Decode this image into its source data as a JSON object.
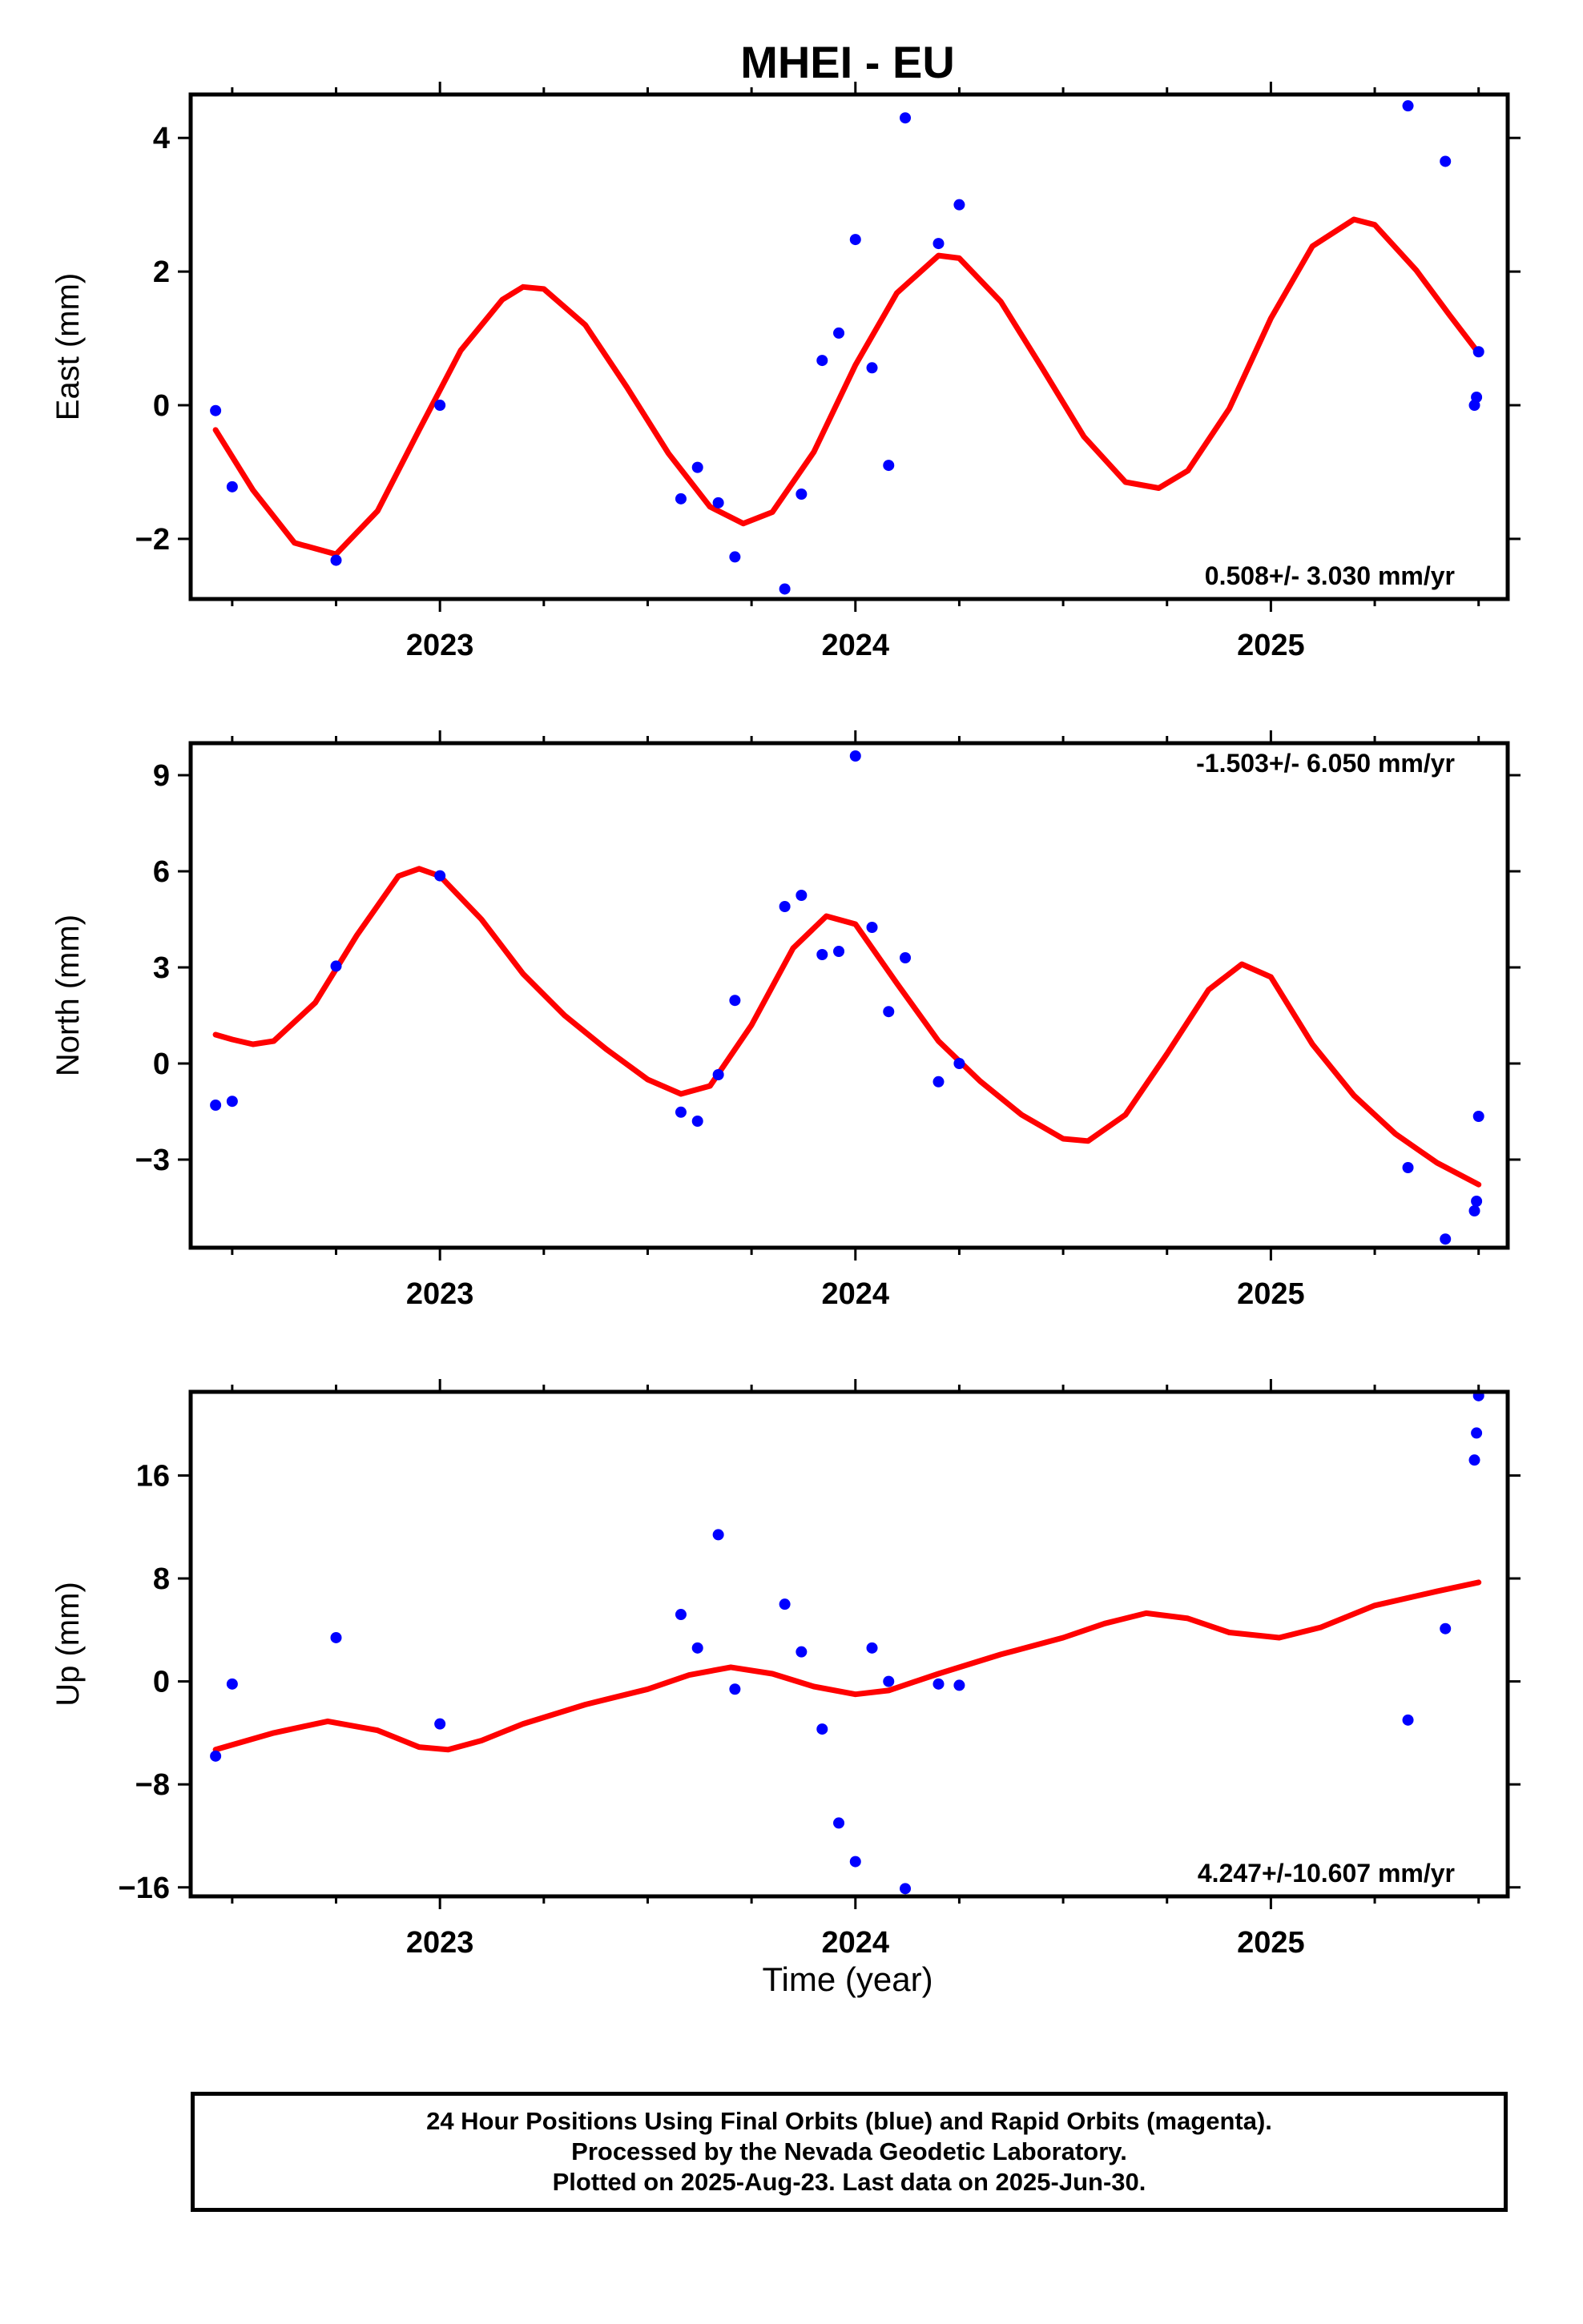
{
  "title": "MHEI - EU",
  "colors": {
    "final_orbits": "#0000ff",
    "fit_curve": "#ff0000",
    "frame": "#000000"
  },
  "footer": {
    "line1": "24 Hour Positions Using Final Orbits (blue) and Rapid Orbits (magenta).",
    "line2": "Processed by the Nevada Geodetic Laboratory.",
    "line3": "Plotted on 2025-Aug-23. Last data on 2025-Jun-30."
  },
  "chart_data": [
    {
      "type": "scatter",
      "ylabel": "East (mm)",
      "xlabel": "",
      "rate_label": "0.508+/- 3.030 mm/yr",
      "xlim": [
        2022.4,
        2025.57
      ],
      "ylim": [
        -2.9,
        4.65
      ],
      "x_ticks": [
        2023,
        2024,
        2025
      ],
      "y_ticks": [
        -2,
        0,
        2,
        4
      ],
      "series": [
        {
          "points": [
            [
              2022.46,
              -0.08
            ],
            [
              2022.5,
              -1.22
            ],
            [
              2022.75,
              -2.32
            ],
            [
              2023.0,
              0.0
            ],
            [
              2023.58,
              -1.4
            ],
            [
              2023.62,
              -0.93
            ],
            [
              2023.67,
              -1.46
            ],
            [
              2023.71,
              -2.27
            ],
            [
              2023.83,
              -2.75
            ],
            [
              2023.87,
              -1.33
            ],
            [
              2023.92,
              0.67
            ],
            [
              2023.96,
              1.08
            ],
            [
              2024.0,
              2.48
            ],
            [
              2024.04,
              0.56
            ],
            [
              2024.08,
              -0.9
            ],
            [
              2024.12,
              4.3
            ],
            [
              2024.2,
              2.42
            ],
            [
              2024.25,
              3.0
            ],
            [
              2025.33,
              4.48
            ],
            [
              2025.42,
              3.65
            ],
            [
              2025.49,
              0.0
            ],
            [
              2025.495,
              0.12
            ],
            [
              2025.5,
              0.8
            ]
          ]
        },
        {
          "curve": [
            [
              2022.46,
              -0.37
            ],
            [
              2022.55,
              -1.27
            ],
            [
              2022.65,
              -2.06
            ],
            [
              2022.75,
              -2.23
            ],
            [
              2022.85,
              -1.58
            ],
            [
              2022.95,
              -0.37
            ],
            [
              2023.05,
              0.82
            ],
            [
              2023.15,
              1.58
            ],
            [
              2023.2,
              1.77
            ],
            [
              2023.25,
              1.74
            ],
            [
              2023.35,
              1.2
            ],
            [
              2023.45,
              0.27
            ],
            [
              2023.55,
              -0.72
            ],
            [
              2023.65,
              -1.52
            ],
            [
              2023.73,
              -1.77
            ],
            [
              2023.8,
              -1.6
            ],
            [
              2023.9,
              -0.7
            ],
            [
              2024.0,
              0.6
            ],
            [
              2024.1,
              1.68
            ],
            [
              2024.2,
              2.24
            ],
            [
              2024.25,
              2.2
            ],
            [
              2024.35,
              1.55
            ],
            [
              2024.45,
              0.55
            ],
            [
              2024.55,
              -0.47
            ],
            [
              2024.65,
              -1.15
            ],
            [
              2024.73,
              -1.24
            ],
            [
              2024.8,
              -0.98
            ],
            [
              2024.9,
              -0.05
            ],
            [
              2025.0,
              1.3
            ],
            [
              2025.1,
              2.38
            ],
            [
              2025.2,
              2.78
            ],
            [
              2025.25,
              2.7
            ],
            [
              2025.35,
              2.02
            ],
            [
              2025.43,
              1.35
            ],
            [
              2025.5,
              0.78
            ]
          ]
        }
      ]
    },
    {
      "type": "scatter",
      "ylabel": "North (mm)",
      "xlabel": "",
      "rate_label": "-1.503+/- 6.050 mm/yr",
      "xlim": [
        2022.4,
        2025.57
      ],
      "ylim": [
        -5.75,
        10.0
      ],
      "x_ticks": [
        2023,
        2024,
        2025
      ],
      "y_ticks": [
        -3,
        0,
        3,
        6,
        9
      ],
      "series": [
        {
          "points": [
            [
              2022.46,
              -1.3
            ],
            [
              2022.5,
              -1.18
            ],
            [
              2022.75,
              3.04
            ],
            [
              2023.0,
              5.86
            ],
            [
              2023.58,
              -1.52
            ],
            [
              2023.62,
              -1.8
            ],
            [
              2023.67,
              -0.35
            ],
            [
              2023.71,
              1.97
            ],
            [
              2023.83,
              4.9
            ],
            [
              2023.87,
              5.25
            ],
            [
              2023.92,
              3.4
            ],
            [
              2023.96,
              3.5
            ],
            [
              2024.0,
              9.6
            ],
            [
              2024.04,
              4.25
            ],
            [
              2024.08,
              1.62
            ],
            [
              2024.12,
              3.3
            ],
            [
              2024.2,
              -0.57
            ],
            [
              2024.25,
              0.0
            ],
            [
              2025.33,
              -3.25
            ],
            [
              2025.42,
              -5.48
            ],
            [
              2025.49,
              -4.6
            ],
            [
              2025.495,
              -4.3
            ],
            [
              2025.5,
              -1.65
            ]
          ]
        },
        {
          "curve": [
            [
              2022.46,
              0.9
            ],
            [
              2022.5,
              0.75
            ],
            [
              2022.55,
              0.6
            ],
            [
              2022.6,
              0.7
            ],
            [
              2022.7,
              1.9
            ],
            [
              2022.8,
              4.0
            ],
            [
              2022.9,
              5.85
            ],
            [
              2022.95,
              6.08
            ],
            [
              2023.0,
              5.85
            ],
            [
              2023.1,
              4.5
            ],
            [
              2023.2,
              2.8
            ],
            [
              2023.3,
              1.5
            ],
            [
              2023.4,
              0.45
            ],
            [
              2023.5,
              -0.5
            ],
            [
              2023.58,
              -0.95
            ],
            [
              2023.65,
              -0.7
            ],
            [
              2023.75,
              1.2
            ],
            [
              2023.85,
              3.6
            ],
            [
              2023.93,
              4.6
            ],
            [
              2024.0,
              4.35
            ],
            [
              2024.1,
              2.5
            ],
            [
              2024.2,
              0.7
            ],
            [
              2024.3,
              -0.55
            ],
            [
              2024.4,
              -1.6
            ],
            [
              2024.5,
              -2.35
            ],
            [
              2024.56,
              -2.42
            ],
            [
              2024.65,
              -1.6
            ],
            [
              2024.75,
              0.3
            ],
            [
              2024.85,
              2.3
            ],
            [
              2024.93,
              3.1
            ],
            [
              2025.0,
              2.7
            ],
            [
              2025.1,
              0.6
            ],
            [
              2025.2,
              -1.0
            ],
            [
              2025.3,
              -2.2
            ],
            [
              2025.4,
              -3.1
            ],
            [
              2025.5,
              -3.78
            ]
          ]
        }
      ]
    },
    {
      "type": "scatter",
      "ylabel": "Up (mm)",
      "xlabel": "Time (year)",
      "rate_label": "4.247+/-10.607 mm/yr",
      "xlim": [
        2022.4,
        2025.57
      ],
      "ylim": [
        -16.7,
        22.5
      ],
      "x_ticks": [
        2023,
        2024,
        2025
      ],
      "y_ticks": [
        -16,
        -8,
        0,
        8,
        16
      ],
      "series": [
        {
          "points": [
            [
              2022.46,
              -5.8
            ],
            [
              2022.5,
              -0.2
            ],
            [
              2022.75,
              3.4
            ],
            [
              2023.0,
              -3.3
            ],
            [
              2023.58,
              5.2
            ],
            [
              2023.62,
              2.6
            ],
            [
              2023.67,
              11.4
            ],
            [
              2023.71,
              -0.6
            ],
            [
              2023.83,
              6.0
            ],
            [
              2023.87,
              2.3
            ],
            [
              2023.92,
              -3.7
            ],
            [
              2023.96,
              -11.0
            ],
            [
              2024.0,
              -14.0
            ],
            [
              2024.04,
              2.6
            ],
            [
              2024.08,
              0.0
            ],
            [
              2024.12,
              -16.1
            ],
            [
              2024.2,
              -0.2
            ],
            [
              2024.25,
              -0.3
            ],
            [
              2025.33,
              -3.0
            ],
            [
              2025.42,
              4.1
            ],
            [
              2025.49,
              17.2
            ],
            [
              2025.495,
              19.3
            ],
            [
              2025.5,
              22.2
            ]
          ]
        },
        {
          "curve": [
            [
              2022.46,
              -5.3
            ],
            [
              2022.6,
              -4.0
            ],
            [
              2022.73,
              -3.1
            ],
            [
              2022.85,
              -3.8
            ],
            [
              2022.95,
              -5.1
            ],
            [
              2023.02,
              -5.3
            ],
            [
              2023.1,
              -4.6
            ],
            [
              2023.2,
              -3.3
            ],
            [
              2023.35,
              -1.8
            ],
            [
              2023.5,
              -0.6
            ],
            [
              2023.6,
              0.5
            ],
            [
              2023.7,
              1.1
            ],
            [
              2023.8,
              0.6
            ],
            [
              2023.9,
              -0.4
            ],
            [
              2024.0,
              -1.0
            ],
            [
              2024.08,
              -0.7
            ],
            [
              2024.2,
              0.6
            ],
            [
              2024.35,
              2.1
            ],
            [
              2024.5,
              3.4
            ],
            [
              2024.6,
              4.5
            ],
            [
              2024.7,
              5.3
            ],
            [
              2024.8,
              4.9
            ],
            [
              2024.9,
              3.8
            ],
            [
              2025.02,
              3.4
            ],
            [
              2025.12,
              4.2
            ],
            [
              2025.25,
              5.9
            ],
            [
              2025.4,
              7.0
            ],
            [
              2025.5,
              7.7
            ]
          ]
        }
      ]
    }
  ]
}
